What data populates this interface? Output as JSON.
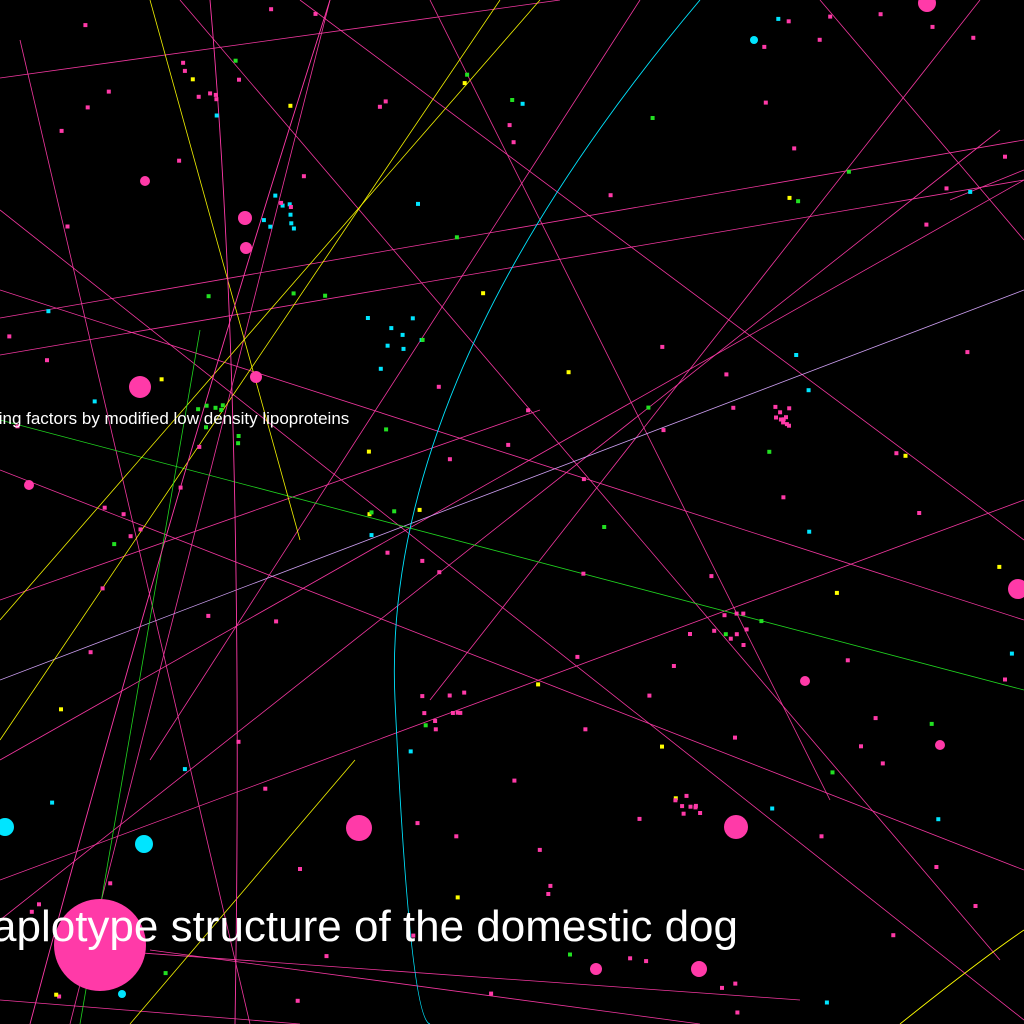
{
  "colors": {
    "background": "#000000",
    "magenta": "#ff3aa8",
    "cyan": "#00e5ff",
    "green": "#22e022",
    "yellow": "#ffff00",
    "orange": "#ff8c3a",
    "lavender": "#d8a8ff",
    "text": "#ffffff"
  },
  "labels": {
    "small": "ting factors by modified low density lipoproteins",
    "large": "aplotype structure of the domestic dog"
  }
}
